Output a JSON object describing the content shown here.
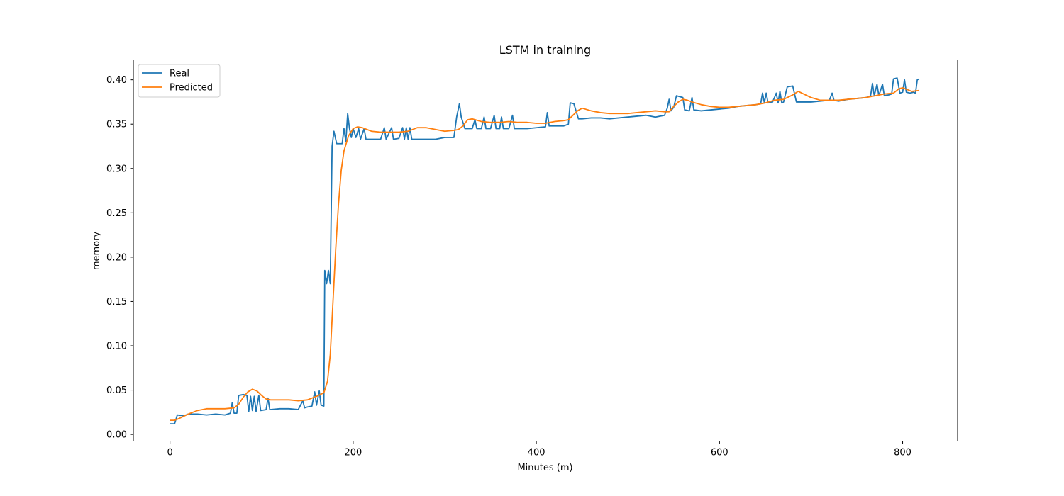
{
  "chart_data": {
    "type": "line",
    "title": "LSTM in training",
    "xlabel": "Minutes (m)",
    "ylabel": "memory",
    "xlim": [
      -40,
      860
    ],
    "ylim": [
      -0.0075,
      0.4225
    ],
    "x_ticks": [
      0,
      200,
      400,
      600,
      800
    ],
    "y_ticks": [
      0.0,
      0.05,
      0.1,
      0.15,
      0.2,
      0.25,
      0.3,
      0.35,
      0.4
    ],
    "grid": false,
    "legend_position": "top-left",
    "series": [
      {
        "name": "Real",
        "color": "#1f77b4",
        "points": [
          [
            0,
            0.012
          ],
          [
            5,
            0.012
          ],
          [
            8,
            0.022
          ],
          [
            15,
            0.021
          ],
          [
            20,
            0.023
          ],
          [
            30,
            0.023
          ],
          [
            40,
            0.022
          ],
          [
            50,
            0.023
          ],
          [
            60,
            0.022
          ],
          [
            66,
            0.024
          ],
          [
            68,
            0.036
          ],
          [
            70,
            0.024
          ],
          [
            73,
            0.024
          ],
          [
            75,
            0.044
          ],
          [
            80,
            0.045
          ],
          [
            84,
            0.044
          ],
          [
            86,
            0.026
          ],
          [
            88,
            0.043
          ],
          [
            90,
            0.027
          ],
          [
            92,
            0.043
          ],
          [
            94,
            0.026
          ],
          [
            97,
            0.044
          ],
          [
            99,
            0.027
          ],
          [
            105,
            0.028
          ],
          [
            107,
            0.041
          ],
          [
            109,
            0.028
          ],
          [
            120,
            0.029
          ],
          [
            130,
            0.029
          ],
          [
            140,
            0.028
          ],
          [
            145,
            0.038
          ],
          [
            147,
            0.03
          ],
          [
            150,
            0.031
          ],
          [
            155,
            0.032
          ],
          [
            158,
            0.048
          ],
          [
            160,
            0.033
          ],
          [
            163,
            0.049
          ],
          [
            165,
            0.033
          ],
          [
            168,
            0.032
          ],
          [
            169,
            0.185
          ],
          [
            171,
            0.17
          ],
          [
            173,
            0.185
          ],
          [
            175,
            0.17
          ],
          [
            177,
            0.325
          ],
          [
            179,
            0.342
          ],
          [
            182,
            0.328
          ],
          [
            188,
            0.328
          ],
          [
            190,
            0.345
          ],
          [
            192,
            0.33
          ],
          [
            194,
            0.362
          ],
          [
            196,
            0.345
          ],
          [
            198,
            0.335
          ],
          [
            200,
            0.345
          ],
          [
            203,
            0.335
          ],
          [
            206,
            0.345
          ],
          [
            208,
            0.333
          ],
          [
            212,
            0.345
          ],
          [
            214,
            0.333
          ],
          [
            220,
            0.333
          ],
          [
            230,
            0.333
          ],
          [
            234,
            0.346
          ],
          [
            236,
            0.333
          ],
          [
            242,
            0.346
          ],
          [
            244,
            0.333
          ],
          [
            250,
            0.334
          ],
          [
            254,
            0.346
          ],
          [
            256,
            0.333
          ],
          [
            258,
            0.346
          ],
          [
            260,
            0.333
          ],
          [
            262,
            0.346
          ],
          [
            264,
            0.333
          ],
          [
            270,
            0.333
          ],
          [
            280,
            0.333
          ],
          [
            290,
            0.333
          ],
          [
            300,
            0.335
          ],
          [
            310,
            0.335
          ],
          [
            313,
            0.358
          ],
          [
            316,
            0.373
          ],
          [
            318,
            0.358
          ],
          [
            322,
            0.345
          ],
          [
            330,
            0.345
          ],
          [
            333,
            0.355
          ],
          [
            335,
            0.345
          ],
          [
            340,
            0.345
          ],
          [
            343,
            0.358
          ],
          [
            345,
            0.345
          ],
          [
            350,
            0.345
          ],
          [
            354,
            0.36
          ],
          [
            356,
            0.345
          ],
          [
            360,
            0.345
          ],
          [
            362,
            0.358
          ],
          [
            364,
            0.345
          ],
          [
            370,
            0.345
          ],
          [
            374,
            0.36
          ],
          [
            376,
            0.345
          ],
          [
            380,
            0.345
          ],
          [
            390,
            0.345
          ],
          [
            400,
            0.346
          ],
          [
            410,
            0.347
          ],
          [
            412,
            0.363
          ],
          [
            414,
            0.348
          ],
          [
            420,
            0.348
          ],
          [
            430,
            0.348
          ],
          [
            435,
            0.35
          ],
          [
            437,
            0.374
          ],
          [
            441,
            0.373
          ],
          [
            446,
            0.356
          ],
          [
            450,
            0.356
          ],
          [
            460,
            0.357
          ],
          [
            470,
            0.357
          ],
          [
            480,
            0.356
          ],
          [
            490,
            0.357
          ],
          [
            500,
            0.358
          ],
          [
            510,
            0.359
          ],
          [
            520,
            0.36
          ],
          [
            530,
            0.358
          ],
          [
            540,
            0.36
          ],
          [
            543,
            0.368
          ],
          [
            545,
            0.378
          ],
          [
            547,
            0.365
          ],
          [
            550,
            0.369
          ],
          [
            553,
            0.382
          ],
          [
            560,
            0.38
          ],
          [
            562,
            0.366
          ],
          [
            567,
            0.365
          ],
          [
            570,
            0.38
          ],
          [
            572,
            0.366
          ],
          [
            580,
            0.365
          ],
          [
            590,
            0.366
          ],
          [
            600,
            0.367
          ],
          [
            610,
            0.368
          ],
          [
            620,
            0.37
          ],
          [
            630,
            0.371
          ],
          [
            640,
            0.372
          ],
          [
            645,
            0.373
          ],
          [
            647,
            0.385
          ],
          [
            649,
            0.374
          ],
          [
            651,
            0.385
          ],
          [
            653,
            0.374
          ],
          [
            658,
            0.375
          ],
          [
            662,
            0.385
          ],
          [
            664,
            0.374
          ],
          [
            666,
            0.387
          ],
          [
            668,
            0.374
          ],
          [
            670,
            0.375
          ],
          [
            674,
            0.392
          ],
          [
            680,
            0.393
          ],
          [
            684,
            0.375
          ],
          [
            690,
            0.375
          ],
          [
            700,
            0.375
          ],
          [
            710,
            0.376
          ],
          [
            720,
            0.377
          ],
          [
            723,
            0.385
          ],
          [
            725,
            0.377
          ],
          [
            730,
            0.376
          ],
          [
            740,
            0.378
          ],
          [
            750,
            0.379
          ],
          [
            760,
            0.38
          ],
          [
            765,
            0.382
          ],
          [
            767,
            0.396
          ],
          [
            769,
            0.382
          ],
          [
            772,
            0.395
          ],
          [
            774,
            0.382
          ],
          [
            778,
            0.395
          ],
          [
            780,
            0.382
          ],
          [
            785,
            0.383
          ],
          [
            788,
            0.384
          ],
          [
            790,
            0.401
          ],
          [
            794,
            0.402
          ],
          [
            797,
            0.385
          ],
          [
            800,
            0.386
          ],
          [
            802,
            0.4
          ],
          [
            804,
            0.386
          ],
          [
            808,
            0.385
          ],
          [
            812,
            0.386
          ],
          [
            814,
            0.385
          ],
          [
            816,
            0.4
          ],
          [
            818,
            0.401
          ]
        ]
      },
      {
        "name": "Predicted",
        "color": "#ff7f0e",
        "points": [
          [
            0,
            0.016
          ],
          [
            5,
            0.016
          ],
          [
            10,
            0.018
          ],
          [
            20,
            0.023
          ],
          [
            30,
            0.027
          ],
          [
            40,
            0.029
          ],
          [
            50,
            0.029
          ],
          [
            60,
            0.029
          ],
          [
            70,
            0.03
          ],
          [
            75,
            0.034
          ],
          [
            80,
            0.042
          ],
          [
            85,
            0.048
          ],
          [
            90,
            0.051
          ],
          [
            95,
            0.049
          ],
          [
            100,
            0.044
          ],
          [
            105,
            0.04
          ],
          [
            110,
            0.039
          ],
          [
            120,
            0.039
          ],
          [
            130,
            0.039
          ],
          [
            140,
            0.038
          ],
          [
            150,
            0.039
          ],
          [
            160,
            0.043
          ],
          [
            168,
            0.047
          ],
          [
            172,
            0.06
          ],
          [
            175,
            0.09
          ],
          [
            178,
            0.15
          ],
          [
            181,
            0.21
          ],
          [
            184,
            0.26
          ],
          [
            187,
            0.298
          ],
          [
            190,
            0.32
          ],
          [
            195,
            0.337
          ],
          [
            200,
            0.345
          ],
          [
            205,
            0.347
          ],
          [
            210,
            0.346
          ],
          [
            220,
            0.342
          ],
          [
            230,
            0.341
          ],
          [
            240,
            0.341
          ],
          [
            250,
            0.341
          ],
          [
            260,
            0.342
          ],
          [
            270,
            0.346
          ],
          [
            280,
            0.346
          ],
          [
            290,
            0.344
          ],
          [
            300,
            0.342
          ],
          [
            310,
            0.343
          ],
          [
            315,
            0.344
          ],
          [
            320,
            0.348
          ],
          [
            325,
            0.355
          ],
          [
            330,
            0.356
          ],
          [
            340,
            0.353
          ],
          [
            350,
            0.352
          ],
          [
            360,
            0.352
          ],
          [
            370,
            0.353
          ],
          [
            380,
            0.352
          ],
          [
            390,
            0.352
          ],
          [
            400,
            0.351
          ],
          [
            410,
            0.351
          ],
          [
            420,
            0.353
          ],
          [
            430,
            0.354
          ],
          [
            435,
            0.355
          ],
          [
            440,
            0.36
          ],
          [
            445,
            0.365
          ],
          [
            450,
            0.368
          ],
          [
            460,
            0.365
          ],
          [
            470,
            0.363
          ],
          [
            480,
            0.362
          ],
          [
            490,
            0.362
          ],
          [
            500,
            0.362
          ],
          [
            510,
            0.363
          ],
          [
            520,
            0.364
          ],
          [
            530,
            0.365
          ],
          [
            540,
            0.364
          ],
          [
            545,
            0.364
          ],
          [
            550,
            0.37
          ],
          [
            555,
            0.375
          ],
          [
            560,
            0.378
          ],
          [
            565,
            0.377
          ],
          [
            570,
            0.375
          ],
          [
            580,
            0.372
          ],
          [
            590,
            0.37
          ],
          [
            600,
            0.369
          ],
          [
            610,
            0.369
          ],
          [
            620,
            0.37
          ],
          [
            630,
            0.371
          ],
          [
            640,
            0.372
          ],
          [
            650,
            0.374
          ],
          [
            660,
            0.377
          ],
          [
            670,
            0.378
          ],
          [
            680,
            0.383
          ],
          [
            686,
            0.387
          ],
          [
            690,
            0.385
          ],
          [
            700,
            0.38
          ],
          [
            710,
            0.377
          ],
          [
            720,
            0.377
          ],
          [
            730,
            0.377
          ],
          [
            740,
            0.378
          ],
          [
            750,
            0.379
          ],
          [
            760,
            0.38
          ],
          [
            770,
            0.382
          ],
          [
            780,
            0.384
          ],
          [
            790,
            0.385
          ],
          [
            796,
            0.39
          ],
          [
            800,
            0.391
          ],
          [
            805,
            0.389
          ],
          [
            810,
            0.387
          ],
          [
            818,
            0.388
          ]
        ]
      }
    ]
  }
}
